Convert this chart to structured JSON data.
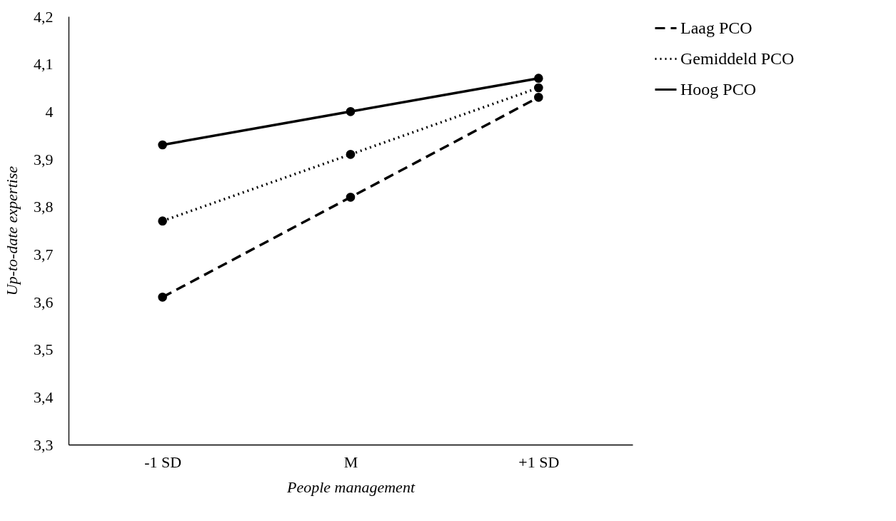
{
  "chart_data": {
    "type": "line",
    "xlabel": "People management",
    "ylabel": "Up-to-date expertise",
    "categories": [
      "-1 SD",
      "M",
      "+1 SD"
    ],
    "series": [
      {
        "name": "Laag PCO",
        "color": "#000000",
        "line_style": "dashed",
        "values": [
          3.61,
          3.82,
          4.03
        ]
      },
      {
        "name": "Gemiddeld PCO",
        "color": "#000000",
        "line_style": "dotted",
        "values": [
          3.77,
          3.91,
          4.05
        ]
      },
      {
        "name": "Hoog PCO",
        "color": "#000000",
        "line_style": "solid",
        "values": [
          3.93,
          4.0,
          4.07
        ]
      }
    ],
    "ylim": [
      3.3,
      4.2
    ],
    "yticks": [
      {
        "value": 3.3,
        "label": "3,3"
      },
      {
        "value": 3.4,
        "label": "3,4"
      },
      {
        "value": 3.5,
        "label": "3,5"
      },
      {
        "value": 3.6,
        "label": "3,6"
      },
      {
        "value": 3.7,
        "label": "3,7"
      },
      {
        "value": 3.8,
        "label": "3,8"
      },
      {
        "value": 3.9,
        "label": "3,9"
      },
      4,
      {
        "value": 4.1,
        "label": "4,1"
      },
      {
        "value": 4.2,
        "label": "4,2"
      }
    ],
    "marker": "circle",
    "grid": false,
    "legend": "right"
  }
}
